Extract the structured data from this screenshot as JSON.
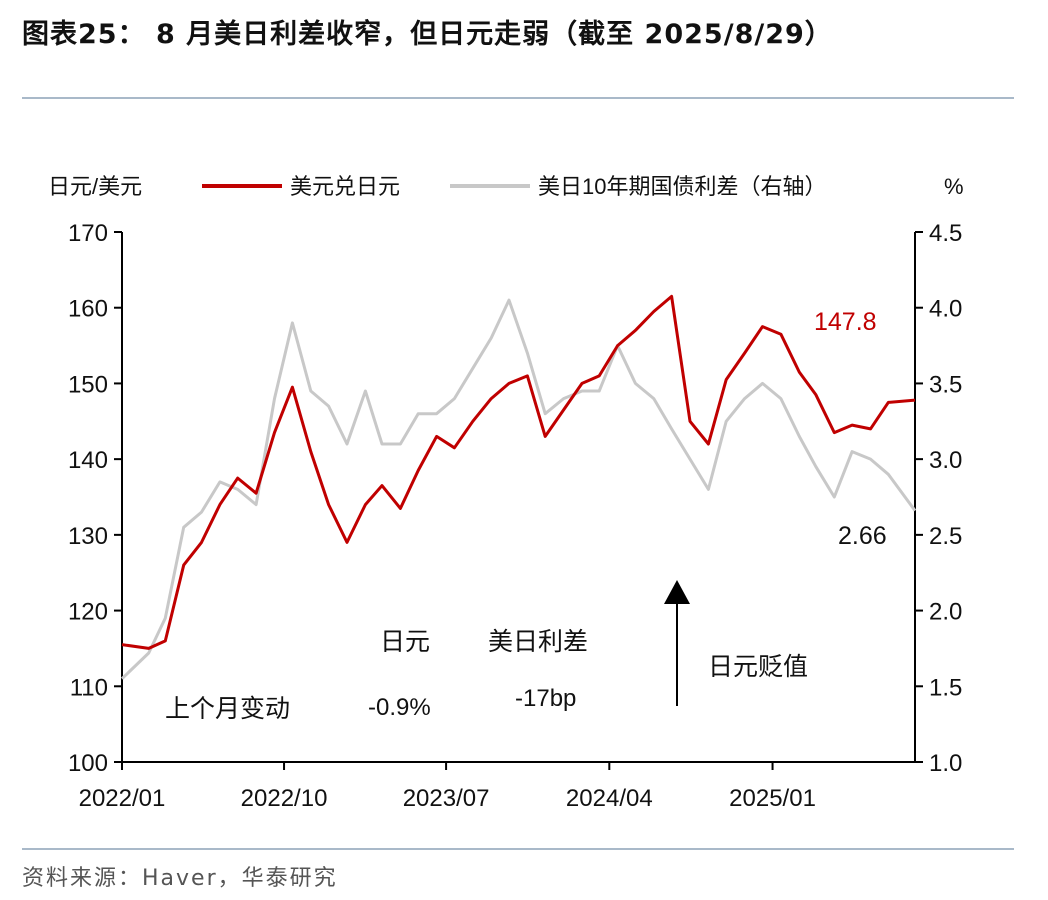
{
  "title": "图表25： 8 月美日利差收窄，但日元走弱（截至 2025/8/29）",
  "source": "资料来源：Haver，华泰研究",
  "colors": {
    "usdjpy": "#c00000",
    "spread": "#c8c8c8",
    "axis": "#000000",
    "rule": "#a9b9c9"
  },
  "chart_data": {
    "type": "line",
    "left_axis": {
      "label": "日元/美元",
      "min": 100,
      "max": 170,
      "ticks": [
        "100",
        "110",
        "120",
        "130",
        "140",
        "150",
        "160",
        "170"
      ]
    },
    "right_axis": {
      "label": "%",
      "min": 1.0,
      "max": 4.5,
      "ticks": [
        "1.0",
        "1.5",
        "2.0",
        "2.5",
        "3.0",
        "3.5",
        "4.0",
        "4.5"
      ]
    },
    "x_range": [
      "2022-01-01",
      "2025-08-29"
    ],
    "x_ticks": [
      "2022/01",
      "2022/10",
      "2023/07",
      "2024/04",
      "2025/01"
    ],
    "legend": [
      "美元兑日元",
      "美日10年期国债利差（右轴）"
    ],
    "series": [
      {
        "name": "美元兑日元",
        "axis": "left",
        "end_label": "147.8",
        "points": [
          [
            "2022-01",
            115.5
          ],
          [
            "2022-02",
            115.0
          ],
          [
            "2022-03",
            116.0
          ],
          [
            "2022-04",
            126.0
          ],
          [
            "2022-05",
            129.0
          ],
          [
            "2022-06",
            134.0
          ],
          [
            "2022-07",
            137.5
          ],
          [
            "2022-08",
            135.5
          ],
          [
            "2022-09",
            143.5
          ],
          [
            "2022-10",
            149.5
          ],
          [
            "2022-11",
            141.0
          ],
          [
            "2022-12",
            134.0
          ],
          [
            "2023-01",
            129.0
          ],
          [
            "2023-02",
            134.0
          ],
          [
            "2023-03",
            136.5
          ],
          [
            "2023-04",
            133.5
          ],
          [
            "2023-05",
            138.5
          ],
          [
            "2023-06",
            143.0
          ],
          [
            "2023-07",
            141.5
          ],
          [
            "2023-08",
            145.0
          ],
          [
            "2023-09",
            148.0
          ],
          [
            "2023-10",
            150.0
          ],
          [
            "2023-11",
            151.0
          ],
          [
            "2023-12",
            143.0
          ],
          [
            "2024-01",
            146.5
          ],
          [
            "2024-02",
            150.0
          ],
          [
            "2024-03",
            151.0
          ],
          [
            "2024-04",
            155.0
          ],
          [
            "2024-05",
            157.0
          ],
          [
            "2024-06",
            159.5
          ],
          [
            "2024-07",
            161.5
          ],
          [
            "2024-08",
            145.0
          ],
          [
            "2024-09",
            142.0
          ],
          [
            "2024-10",
            150.5
          ],
          [
            "2024-11",
            154.0
          ],
          [
            "2024-12",
            157.5
          ],
          [
            "2025-01",
            156.5
          ],
          [
            "2025-02",
            151.5
          ],
          [
            "2025-03",
            148.5
          ],
          [
            "2025-04",
            143.5
          ],
          [
            "2025-05",
            144.5
          ],
          [
            "2025-06",
            144.0
          ],
          [
            "2025-07",
            147.5
          ],
          [
            "2025-08",
            147.8
          ]
        ]
      },
      {
        "name": "美日10年期国债利差（右轴）",
        "axis": "right",
        "end_label": "2.66",
        "points": [
          [
            "2022-01",
            1.55
          ],
          [
            "2022-02",
            1.72
          ],
          [
            "2022-03",
            1.95
          ],
          [
            "2022-04",
            2.55
          ],
          [
            "2022-05",
            2.65
          ],
          [
            "2022-06",
            2.85
          ],
          [
            "2022-07",
            2.8
          ],
          [
            "2022-08",
            2.7
          ],
          [
            "2022-09",
            3.4
          ],
          [
            "2022-10",
            3.9
          ],
          [
            "2022-11",
            3.45
          ],
          [
            "2022-12",
            3.35
          ],
          [
            "2023-01",
            3.1
          ],
          [
            "2023-02",
            3.45
          ],
          [
            "2023-03",
            3.1
          ],
          [
            "2023-04",
            3.1
          ],
          [
            "2023-05",
            3.3
          ],
          [
            "2023-06",
            3.3
          ],
          [
            "2023-07",
            3.4
          ],
          [
            "2023-08",
            3.6
          ],
          [
            "2023-09",
            3.8
          ],
          [
            "2023-10",
            4.05
          ],
          [
            "2023-11",
            3.7
          ],
          [
            "2023-12",
            3.3
          ],
          [
            "2024-01",
            3.4
          ],
          [
            "2024-02",
            3.45
          ],
          [
            "2024-03",
            3.45
          ],
          [
            "2024-04",
            3.75
          ],
          [
            "2024-05",
            3.5
          ],
          [
            "2024-06",
            3.4
          ],
          [
            "2024-07",
            3.2
          ],
          [
            "2024-08",
            3.0
          ],
          [
            "2024-09",
            2.8
          ],
          [
            "2024-10",
            3.25
          ],
          [
            "2024-11",
            3.4
          ],
          [
            "2024-12",
            3.5
          ],
          [
            "2025-01",
            3.4
          ],
          [
            "2025-02",
            3.15
          ],
          [
            "2025-03",
            2.95
          ],
          [
            "2025-04",
            2.75
          ],
          [
            "2025-05",
            3.05
          ],
          [
            "2025-06",
            3.0
          ],
          [
            "2025-07",
            2.9
          ],
          [
            "2025-08",
            2.66
          ]
        ]
      }
    ],
    "annotations": {
      "table_header_yen": "日元",
      "table_header_spread": "美日利差",
      "row_label": "上个月变动",
      "yen_change": "-0.9%",
      "spread_change": "-17bp",
      "arrow_label": "日元贬值"
    }
  }
}
